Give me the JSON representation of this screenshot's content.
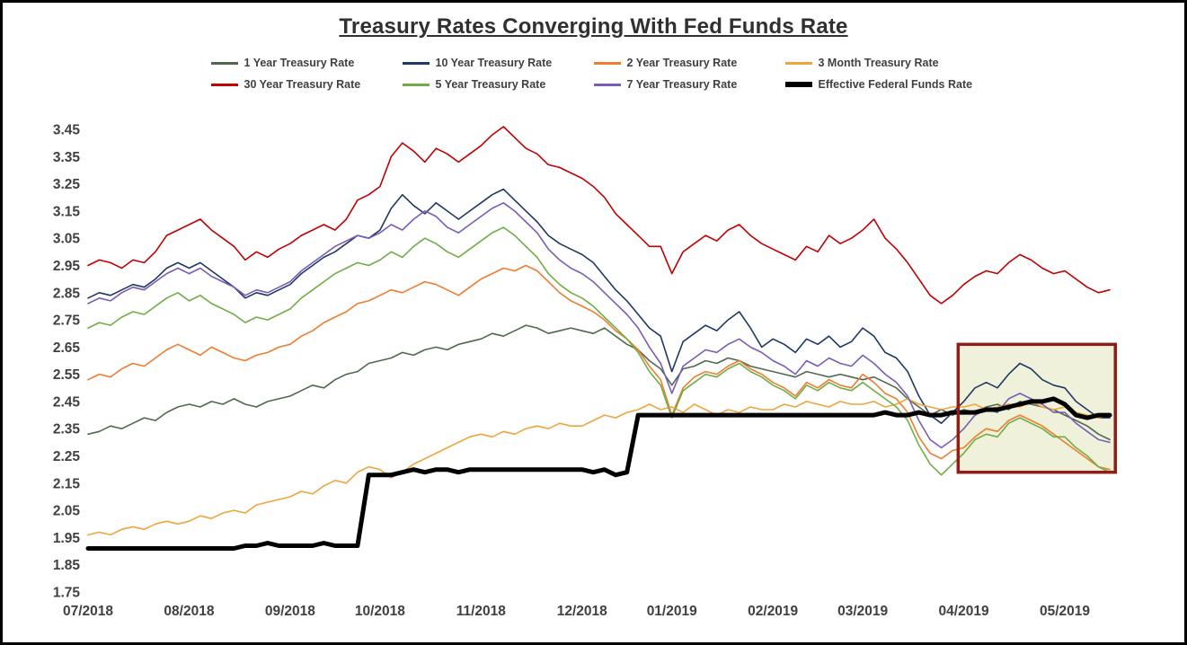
{
  "chart_data": {
    "type": "line",
    "title": "Treasury Rates Converging With Fed Funds Rate",
    "grid": false,
    "legend_position": "top",
    "n_points": 92,
    "x_axis": {
      "tick_labels": [
        "07/2018",
        "08/2018",
        "09/2018",
        "10/2018",
        "11/2018",
        "12/2018",
        "01/2019",
        "02/2019",
        "03/2019",
        "04/2019",
        "05/2019"
      ],
      "tick_indices": [
        0,
        9,
        18,
        26,
        35,
        44,
        52,
        61,
        69,
        78,
        87
      ]
    },
    "y_axis": {
      "min": 1.75,
      "max": 3.45,
      "tick_labels": [
        "3.45",
        "3.35",
        "3.25",
        "3.15",
        "3.05",
        "2.95",
        "2.85",
        "2.75",
        "2.65",
        "2.55",
        "2.45",
        "2.35",
        "2.25",
        "2.15",
        "2.05",
        "1.95",
        "1.85",
        "1.75"
      ]
    },
    "legend_rows": [
      [
        0,
        1,
        2,
        3
      ],
      [
        4,
        5,
        6,
        7
      ]
    ],
    "highlight_box": {
      "x_from_index": 77.5,
      "x_to_index": 91.5,
      "value_from": 2.19,
      "value_to": 2.66,
      "fill": "#eff1da",
      "border_color": "#8e1f18",
      "border_width": 3.5
    },
    "series": [
      {
        "name": "1 Year Treasury Rate",
        "color": "#50694e",
        "width": 1.6,
        "values": [
          2.33,
          2.34,
          2.36,
          2.35,
          2.37,
          2.39,
          2.38,
          2.41,
          2.43,
          2.44,
          2.43,
          2.45,
          2.44,
          2.46,
          2.44,
          2.43,
          2.45,
          2.46,
          2.47,
          2.49,
          2.51,
          2.5,
          2.53,
          2.55,
          2.56,
          2.59,
          2.6,
          2.61,
          2.63,
          2.62,
          2.64,
          2.65,
          2.64,
          2.66,
          2.67,
          2.68,
          2.7,
          2.69,
          2.71,
          2.73,
          2.72,
          2.7,
          2.71,
          2.72,
          2.71,
          2.7,
          2.72,
          2.69,
          2.66,
          2.64,
          2.6,
          2.57,
          2.51,
          2.57,
          2.58,
          2.6,
          2.59,
          2.61,
          2.6,
          2.58,
          2.57,
          2.56,
          2.55,
          2.54,
          2.56,
          2.55,
          2.54,
          2.55,
          2.54,
          2.53,
          2.54,
          2.52,
          2.5,
          2.46,
          2.43,
          2.4,
          2.42,
          2.4,
          2.42,
          2.41,
          2.43,
          2.44,
          2.42,
          2.45,
          2.44,
          2.43,
          2.42,
          2.4,
          2.38,
          2.36,
          2.33,
          2.31
        ]
      },
      {
        "name": "10 Year Treasury Rate",
        "color": "#1f3864",
        "width": 1.6,
        "values": [
          2.83,
          2.85,
          2.84,
          2.86,
          2.88,
          2.87,
          2.9,
          2.94,
          2.96,
          2.94,
          2.96,
          2.93,
          2.9,
          2.87,
          2.83,
          2.85,
          2.84,
          2.86,
          2.88,
          2.92,
          2.95,
          2.98,
          3.0,
          3.03,
          3.06,
          3.05,
          3.08,
          3.16,
          3.21,
          3.17,
          3.14,
          3.18,
          3.15,
          3.12,
          3.15,
          3.18,
          3.21,
          3.23,
          3.19,
          3.15,
          3.11,
          3.06,
          3.03,
          3.01,
          2.99,
          2.96,
          2.91,
          2.86,
          2.82,
          2.77,
          2.72,
          2.69,
          2.56,
          2.67,
          2.7,
          2.73,
          2.71,
          2.75,
          2.78,
          2.72,
          2.65,
          2.68,
          2.66,
          2.63,
          2.68,
          2.66,
          2.69,
          2.65,
          2.67,
          2.72,
          2.69,
          2.63,
          2.61,
          2.56,
          2.47,
          2.4,
          2.37,
          2.41,
          2.45,
          2.5,
          2.52,
          2.5,
          2.55,
          2.59,
          2.57,
          2.53,
          2.51,
          2.5,
          2.45,
          2.42,
          2.39,
          2.39
        ]
      },
      {
        "name": "2 Year Treasury Rate",
        "color": "#ed7d31",
        "width": 1.6,
        "values": [
          2.53,
          2.55,
          2.54,
          2.57,
          2.59,
          2.58,
          2.61,
          2.64,
          2.66,
          2.64,
          2.62,
          2.65,
          2.63,
          2.61,
          2.6,
          2.62,
          2.63,
          2.65,
          2.66,
          2.69,
          2.71,
          2.74,
          2.76,
          2.78,
          2.81,
          2.82,
          2.84,
          2.86,
          2.85,
          2.87,
          2.89,
          2.88,
          2.86,
          2.84,
          2.87,
          2.9,
          2.92,
          2.94,
          2.93,
          2.95,
          2.93,
          2.89,
          2.85,
          2.82,
          2.8,
          2.78,
          2.75,
          2.71,
          2.68,
          2.64,
          2.58,
          2.53,
          2.4,
          2.5,
          2.54,
          2.56,
          2.55,
          2.58,
          2.6,
          2.57,
          2.55,
          2.52,
          2.5,
          2.47,
          2.52,
          2.5,
          2.53,
          2.51,
          2.5,
          2.55,
          2.52,
          2.48,
          2.46,
          2.41,
          2.32,
          2.26,
          2.24,
          2.27,
          2.28,
          2.32,
          2.35,
          2.34,
          2.38,
          2.4,
          2.38,
          2.36,
          2.33,
          2.3,
          2.27,
          2.24,
          2.21,
          2.2
        ]
      },
      {
        "name": "3 Month Treasury Rate",
        "color": "#efa53d",
        "width": 1.6,
        "values": [
          1.96,
          1.97,
          1.96,
          1.98,
          1.99,
          1.98,
          2.0,
          2.01,
          2.0,
          2.01,
          2.03,
          2.02,
          2.04,
          2.05,
          2.04,
          2.07,
          2.08,
          2.09,
          2.1,
          2.12,
          2.11,
          2.14,
          2.16,
          2.15,
          2.19,
          2.21,
          2.2,
          2.17,
          2.19,
          2.22,
          2.24,
          2.26,
          2.28,
          2.3,
          2.32,
          2.33,
          2.32,
          2.34,
          2.33,
          2.35,
          2.36,
          2.35,
          2.37,
          2.36,
          2.36,
          2.38,
          2.4,
          2.39,
          2.41,
          2.42,
          2.44,
          2.42,
          2.43,
          2.41,
          2.44,
          2.42,
          2.4,
          2.42,
          2.41,
          2.43,
          2.42,
          2.42,
          2.44,
          2.43,
          2.45,
          2.44,
          2.43,
          2.45,
          2.44,
          2.44,
          2.45,
          2.43,
          2.44,
          2.46,
          2.44,
          2.43,
          2.42,
          2.43,
          2.43,
          2.44,
          2.42,
          2.43,
          2.44,
          2.43,
          2.45,
          2.43,
          2.42,
          2.43,
          2.41,
          2.4,
          2.39,
          2.4
        ]
      },
      {
        "name": "30 Year Treasury Rate",
        "color": "#c00000",
        "width": 1.6,
        "values": [
          2.95,
          2.97,
          2.96,
          2.94,
          2.97,
          2.96,
          3.0,
          3.06,
          3.08,
          3.1,
          3.12,
          3.08,
          3.05,
          3.02,
          2.97,
          3.0,
          2.98,
          3.01,
          3.03,
          3.06,
          3.08,
          3.1,
          3.08,
          3.12,
          3.19,
          3.21,
          3.24,
          3.35,
          3.4,
          3.37,
          3.33,
          3.38,
          3.36,
          3.33,
          3.36,
          3.39,
          3.43,
          3.46,
          3.42,
          3.38,
          3.36,
          3.32,
          3.31,
          3.29,
          3.27,
          3.24,
          3.2,
          3.14,
          3.1,
          3.06,
          3.02,
          3.02,
          2.92,
          3.0,
          3.03,
          3.06,
          3.04,
          3.08,
          3.1,
          3.06,
          3.03,
          3.01,
          2.99,
          2.97,
          3.02,
          3.0,
          3.06,
          3.03,
          3.05,
          3.08,
          3.12,
          3.05,
          3.01,
          2.96,
          2.9,
          2.84,
          2.81,
          2.84,
          2.88,
          2.91,
          2.93,
          2.92,
          2.96,
          2.99,
          2.97,
          2.94,
          2.92,
          2.93,
          2.9,
          2.87,
          2.85,
          2.86
        ]
      },
      {
        "name": "5 Year Treasury Rate",
        "color": "#70ad47",
        "width": 1.6,
        "values": [
          2.72,
          2.74,
          2.73,
          2.76,
          2.78,
          2.77,
          2.8,
          2.83,
          2.85,
          2.82,
          2.84,
          2.81,
          2.79,
          2.77,
          2.74,
          2.76,
          2.75,
          2.77,
          2.79,
          2.83,
          2.86,
          2.89,
          2.92,
          2.94,
          2.96,
          2.95,
          2.97,
          3.0,
          2.98,
          3.02,
          3.05,
          3.03,
          3.0,
          2.98,
          3.01,
          3.04,
          3.07,
          3.09,
          3.06,
          3.02,
          2.98,
          2.92,
          2.88,
          2.85,
          2.83,
          2.8,
          2.76,
          2.72,
          2.68,
          2.63,
          2.56,
          2.51,
          2.39,
          2.49,
          2.52,
          2.55,
          2.54,
          2.57,
          2.59,
          2.56,
          2.54,
          2.51,
          2.49,
          2.46,
          2.51,
          2.49,
          2.52,
          2.5,
          2.49,
          2.52,
          2.49,
          2.46,
          2.43,
          2.38,
          2.29,
          2.22,
          2.18,
          2.22,
          2.26,
          2.31,
          2.33,
          2.32,
          2.37,
          2.39,
          2.37,
          2.35,
          2.32,
          2.32,
          2.28,
          2.25,
          2.21,
          2.19
        ]
      },
      {
        "name": "7 Year Treasury Rate",
        "color": "#7a5cb8",
        "width": 1.6,
        "values": [
          2.81,
          2.83,
          2.82,
          2.85,
          2.87,
          2.86,
          2.89,
          2.92,
          2.94,
          2.92,
          2.94,
          2.91,
          2.89,
          2.87,
          2.84,
          2.86,
          2.85,
          2.87,
          2.89,
          2.93,
          2.96,
          2.99,
          3.02,
          3.04,
          3.06,
          3.05,
          3.07,
          3.1,
          3.08,
          3.12,
          3.15,
          3.13,
          3.09,
          3.07,
          3.1,
          3.13,
          3.16,
          3.18,
          3.15,
          3.11,
          3.07,
          3.01,
          2.97,
          2.94,
          2.92,
          2.89,
          2.85,
          2.81,
          2.77,
          2.72,
          2.65,
          2.59,
          2.48,
          2.58,
          2.61,
          2.64,
          2.63,
          2.66,
          2.68,
          2.65,
          2.63,
          2.6,
          2.58,
          2.55,
          2.6,
          2.58,
          2.61,
          2.59,
          2.58,
          2.62,
          2.59,
          2.55,
          2.52,
          2.47,
          2.38,
          2.31,
          2.28,
          2.31,
          2.35,
          2.4,
          2.42,
          2.41,
          2.46,
          2.48,
          2.46,
          2.44,
          2.41,
          2.41,
          2.37,
          2.34,
          2.31,
          2.3
        ]
      },
      {
        "name": "Effective Federal Funds Rate",
        "color": "#000000",
        "width": 5,
        "values": [
          1.91,
          1.91,
          1.91,
          1.91,
          1.91,
          1.91,
          1.91,
          1.91,
          1.91,
          1.91,
          1.91,
          1.91,
          1.91,
          1.91,
          1.92,
          1.92,
          1.93,
          1.92,
          1.92,
          1.92,
          1.92,
          1.93,
          1.92,
          1.92,
          1.92,
          2.18,
          2.18,
          2.18,
          2.19,
          2.2,
          2.19,
          2.2,
          2.2,
          2.19,
          2.2,
          2.2,
          2.2,
          2.2,
          2.2,
          2.2,
          2.2,
          2.2,
          2.2,
          2.2,
          2.2,
          2.19,
          2.2,
          2.18,
          2.19,
          2.4,
          2.4,
          2.4,
          2.4,
          2.4,
          2.4,
          2.4,
          2.4,
          2.4,
          2.4,
          2.4,
          2.4,
          2.4,
          2.4,
          2.4,
          2.4,
          2.4,
          2.4,
          2.4,
          2.4,
          2.4,
          2.4,
          2.41,
          2.4,
          2.4,
          2.41,
          2.4,
          2.4,
          2.41,
          2.41,
          2.41,
          2.42,
          2.42,
          2.43,
          2.44,
          2.45,
          2.45,
          2.46,
          2.44,
          2.4,
          2.39,
          2.4,
          2.4
        ]
      }
    ]
  }
}
